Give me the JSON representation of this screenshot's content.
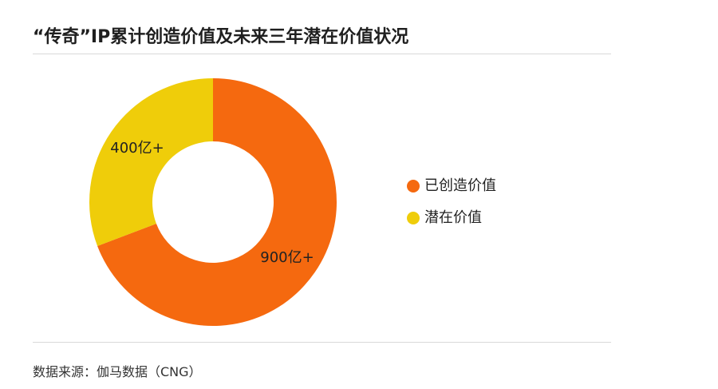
{
  "title": "“传奇”IP累计创造价值及未来三年潜在价值状况",
  "source": "数据来源：伽马数据（CNG）",
  "chart_data": {
    "type": "pie",
    "donut": true,
    "slices": [
      {
        "name": "已创造价值",
        "value": 900,
        "label": "900亿+",
        "color": "#f5690f"
      },
      {
        "name": "潜在价值",
        "value": 400,
        "label": "400亿+",
        "color": "#efcd0a"
      }
    ],
    "legend_position": "right"
  }
}
